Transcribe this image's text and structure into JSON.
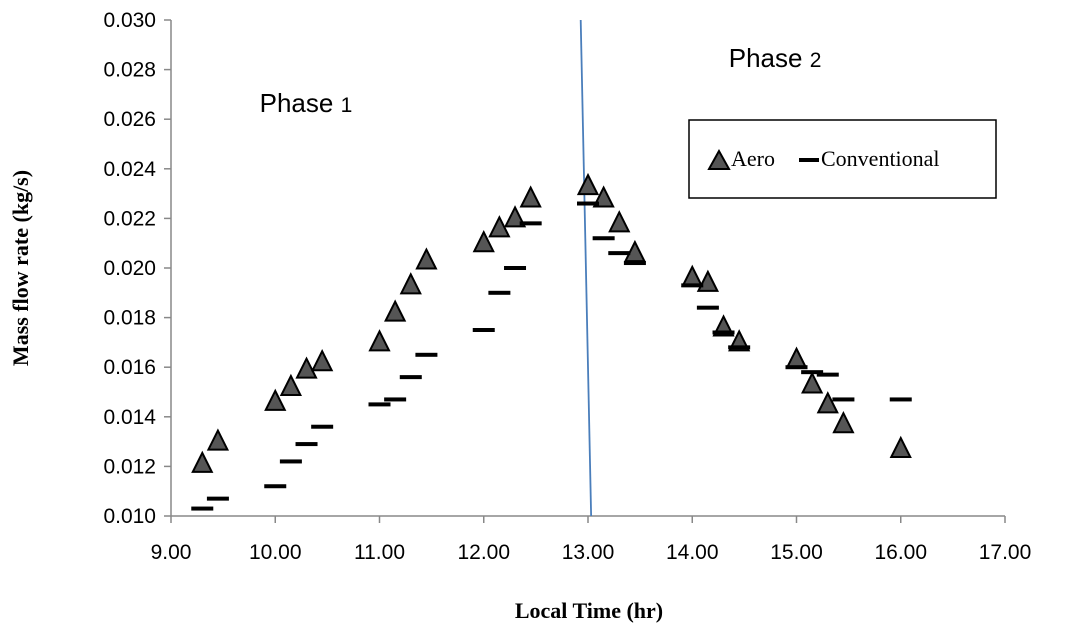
{
  "chart_data": {
    "type": "scatter",
    "xlabel": "Local Time (hr)",
    "ylabel": "Mass flow rate (kg/s)",
    "xlim": [
      9.0,
      17.0
    ],
    "ylim": [
      0.01,
      0.03
    ],
    "x_ticks": [
      "9.00",
      "10.00",
      "11.00",
      "12.00",
      "13.00",
      "14.00",
      "15.00",
      "16.00",
      "17.00"
    ],
    "y_ticks": [
      "0.010",
      "0.012",
      "0.014",
      "0.016",
      "0.018",
      "0.020",
      "0.022",
      "0.024",
      "0.026",
      "0.028",
      "0.030"
    ],
    "grid": false,
    "legend": "top-right",
    "series": [
      {
        "name": "Aero",
        "marker": "triangle",
        "color": "#000000",
        "x": [
          9.3,
          9.45,
          10.0,
          10.15,
          10.3,
          10.45,
          11.0,
          11.15,
          11.3,
          11.45,
          12.0,
          12.15,
          12.3,
          12.45,
          13.0,
          13.15,
          13.3,
          13.45,
          14.0,
          14.15,
          14.3,
          14.45,
          15.0,
          15.15,
          15.3,
          15.45,
          16.0
        ],
        "y": [
          0.0121,
          0.013,
          0.0146,
          0.0152,
          0.0159,
          0.0162,
          0.017,
          0.0182,
          0.0193,
          0.0203,
          0.021,
          0.0216,
          0.022,
          0.0228,
          0.0233,
          0.0228,
          0.0218,
          0.0206,
          0.0196,
          0.0194,
          0.0176,
          0.017,
          0.0163,
          0.0153,
          0.0145,
          0.0137,
          0.0127
        ]
      },
      {
        "name": "Conventional",
        "marker": "dash",
        "color": "#000000",
        "x": [
          9.3,
          9.45,
          10.0,
          10.15,
          10.3,
          10.45,
          11.0,
          11.15,
          11.3,
          11.45,
          12.0,
          12.15,
          12.3,
          12.45,
          13.0,
          13.15,
          13.3,
          13.45,
          14.0,
          14.15,
          14.3,
          14.45,
          15.0,
          15.15,
          15.3,
          15.45,
          16.0
        ],
        "y": [
          0.0103,
          0.0107,
          0.0112,
          0.0122,
          0.0129,
          0.0136,
          0.0145,
          0.0147,
          0.0156,
          0.0165,
          0.0175,
          0.019,
          0.02,
          0.0218,
          0.0226,
          0.0212,
          0.0206,
          0.0202,
          0.0193,
          0.0184,
          0.0174,
          0.0168,
          0.016,
          0.0158,
          0.0157,
          0.0147,
          0.0147
        ]
      }
    ],
    "divider": {
      "x_top": 12.93,
      "x_bottom": 13.03,
      "color": "#4a7ebb"
    },
    "annotations": [
      {
        "label": "Phase",
        "sub": "1",
        "x": 9.85,
        "y": 0.0263
      },
      {
        "label": "Phase",
        "sub": "2",
        "x": 14.35,
        "y": 0.0281
      }
    ]
  }
}
